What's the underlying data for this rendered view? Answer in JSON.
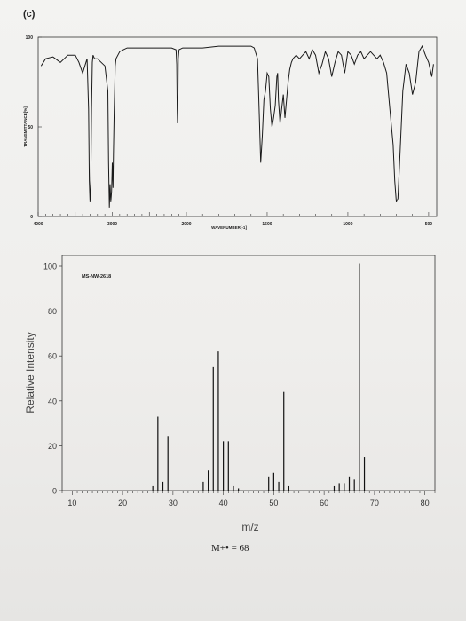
{
  "part_label": "(c)",
  "caption": "M+• = 68",
  "chart_data": [
    {
      "type": "line",
      "ylabel": "TRANSMITTANCE[%]",
      "xlabel": "WAVENUMBER[-1]",
      "yticks": [
        {
          "value": 100,
          "label": "100"
        },
        {
          "value": 50,
          "label": "50"
        },
        {
          "value": 0,
          "label": "0"
        }
      ],
      "xticks": [
        {
          "value": 4000,
          "label": "4000"
        },
        {
          "value": 3000,
          "label": "3000"
        },
        {
          "value": 2000,
          "label": "2000"
        },
        {
          "value": 1500,
          "label": "1500"
        },
        {
          "value": 1000,
          "label": "1000"
        },
        {
          "value": 500,
          "label": "500"
        }
      ],
      "xlim": [
        4000,
        450
      ],
      "ylim": [
        0,
        100
      ],
      "series": [
        {
          "x": [
            3960,
            3900,
            3800,
            3700,
            3600,
            3500,
            3450,
            3400,
            3340,
            3320,
            3310,
            3300,
            3290,
            3280,
            3270,
            3260,
            3240,
            3200,
            3150,
            3100,
            3060,
            3050,
            3040,
            3030,
            3020,
            3010,
            3000,
            2990,
            2985,
            2975,
            2965,
            2960,
            2950,
            2900,
            2850,
            2800,
            2700,
            2600,
            2500,
            2400,
            2300,
            2200,
            2140,
            2130,
            2125,
            2120,
            2115,
            2110,
            2100,
            2050,
            2000,
            1900,
            1800,
            1700,
            1650,
            1620,
            1600,
            1580,
            1560,
            1550,
            1540,
            1530,
            1520,
            1510,
            1500,
            1490,
            1480,
            1470,
            1460,
            1450,
            1440,
            1435,
            1430,
            1420,
            1410,
            1400,
            1390,
            1380,
            1370,
            1360,
            1350,
            1340,
            1320,
            1300,
            1280,
            1260,
            1240,
            1220,
            1200,
            1180,
            1160,
            1140,
            1120,
            1100,
            1080,
            1060,
            1040,
            1020,
            1000,
            980,
            960,
            940,
            920,
            900,
            880,
            860,
            840,
            820,
            800,
            780,
            760,
            740,
            720,
            710,
            700,
            690,
            680,
            660,
            640,
            620,
            600,
            580,
            560,
            540,
            520,
            500,
            480,
            470
          ],
          "y": [
            84,
            88,
            89,
            86,
            90,
            90,
            86,
            80,
            88,
            60,
            20,
            8,
            20,
            60,
            86,
            90,
            88,
            88,
            86,
            84,
            70,
            30,
            5,
            18,
            8,
            14,
            30,
            16,
            35,
            58,
            75,
            84,
            88,
            92,
            93,
            94,
            94,
            94,
            94,
            94,
            94,
            94,
            93,
            85,
            60,
            52,
            62,
            88,
            93,
            94,
            94,
            94,
            95,
            95,
            95,
            95,
            95,
            94,
            88,
            60,
            30,
            45,
            65,
            70,
            80,
            78,
            60,
            50,
            55,
            62,
            78,
            80,
            65,
            52,
            60,
            68,
            55,
            65,
            75,
            82,
            86,
            88,
            90,
            88,
            90,
            92,
            88,
            93,
            90,
            80,
            85,
            92,
            88,
            78,
            86,
            92,
            90,
            80,
            92,
            90,
            85,
            90,
            92,
            88,
            90,
            92,
            90,
            88,
            90,
            86,
            80,
            60,
            40,
            20,
            8,
            10,
            30,
            70,
            85,
            80,
            68,
            75,
            92,
            95,
            90,
            86,
            78,
            85
          ]
        }
      ]
    },
    {
      "type": "bar",
      "title": "MS-NW-2618",
      "xlabel": "m/z",
      "ylabel": "Relative Intensity",
      "xlim": [
        8,
        82
      ],
      "ylim": [
        0,
        100
      ],
      "xticks": [
        10,
        20,
        30,
        40,
        50,
        60,
        70,
        80
      ],
      "yticks": [
        0,
        20,
        40,
        60,
        80,
        100
      ],
      "x": [
        26,
        27,
        28,
        29,
        36,
        37,
        38,
        39,
        40,
        41,
        42,
        43,
        49,
        50,
        51,
        52,
        53,
        62,
        63,
        64,
        65,
        66,
        67,
        68
      ],
      "values": [
        2,
        33,
        4,
        24,
        4,
        9,
        55,
        62,
        22,
        22,
        2,
        1,
        6,
        8,
        4,
        44,
        2,
        2,
        3,
        3,
        6,
        5,
        101,
        15
      ]
    }
  ]
}
